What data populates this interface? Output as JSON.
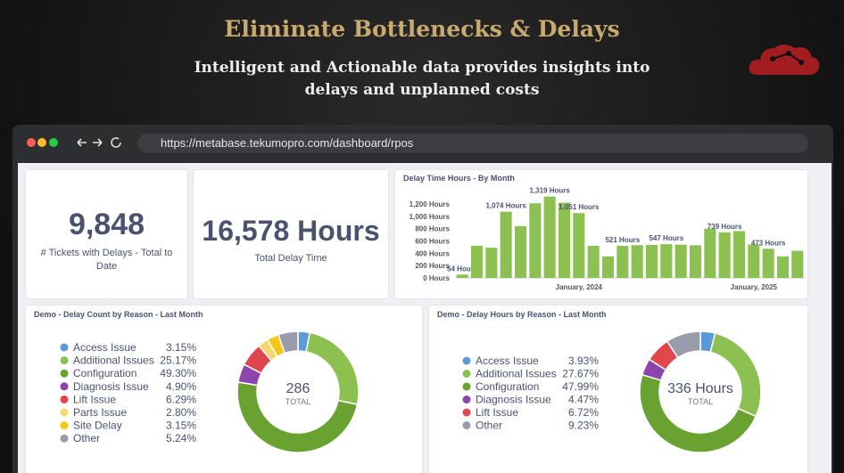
{
  "header": {
    "title": "Eliminate Bottlenecks & Delays",
    "subtitle": "Intelligent and Actionable data provides insights into delays and unplanned costs"
  },
  "browser": {
    "url": "https://metabase.tekumopro.com/dashboard/rpos"
  },
  "kpis": [
    {
      "value": "9,848",
      "label": "# Tickets with Delays - Total to Date"
    },
    {
      "value": "16,578 Hours",
      "label": "Total Delay Time"
    }
  ],
  "chart_data": [
    {
      "type": "bar",
      "title": "Delay Time Hours - By Month",
      "color": "#8cc152",
      "categories": [
        null,
        null,
        null,
        null,
        null,
        null,
        null,
        null,
        "January, 2024",
        null,
        null,
        null,
        null,
        null,
        null,
        null,
        null,
        null,
        null,
        null,
        "January, 2025",
        null,
        null,
        null
      ],
      "values": [
        54,
        520,
        490,
        1074,
        840,
        1210,
        1319,
        1220,
        1051,
        520,
        350,
        521,
        530,
        535,
        547,
        540,
        530,
        800,
        739,
        760,
        540,
        473,
        350,
        440
      ],
      "value_labels": [
        "54 Hours",
        null,
        null,
        "1,074 Hours",
        null,
        null,
        "1,319 Hours",
        null,
        "1,051 Hours",
        null,
        null,
        "521 Hours",
        null,
        null,
        "547 Hours",
        null,
        null,
        null,
        "739 Hours",
        null,
        null,
        "473 Hours",
        null,
        null
      ],
      "ylim": [
        0,
        1300
      ],
      "yticks": [
        {
          "value": 0,
          "label": "0 Hours"
        },
        {
          "value": 200,
          "label": "200 Hours"
        },
        {
          "value": 400,
          "label": "400 Hours"
        },
        {
          "value": 600,
          "label": "600 Hours"
        },
        {
          "value": 800,
          "label": "800 Hours"
        },
        {
          "value": 1000,
          "label": "1,000 Hours"
        },
        {
          "value": 1200,
          "label": "1,200 Hours"
        }
      ],
      "grid": false
    },
    {
      "type": "donut",
      "title": "Demo - Delay Count by Reason - Last Month",
      "categories": [
        "Access Issue",
        "Additional Issues",
        "Configuration",
        "Diagnosis Issue",
        "Lift Issue",
        "Parts Issue",
        "Site Delay",
        "Other"
      ],
      "values": [
        3.15,
        25.17,
        49.3,
        4.9,
        6.29,
        2.8,
        3.15,
        5.24
      ],
      "value_labels": [
        "3.15%",
        "25.17%",
        "49.30%",
        "4.90%",
        "6.29%",
        "2.80%",
        "3.15%",
        "5.24%"
      ],
      "colors": [
        "#5b9bd5",
        "#8cc152",
        "#6aa232",
        "#8e44ad",
        "#e0474c",
        "#f5d76e",
        "#f5c518",
        "#9a9cac"
      ],
      "center_value": 286,
      "center_label": "TOTAL"
    },
    {
      "type": "donut",
      "title": "Demo - Delay Hours by Reason - Last Month",
      "categories": [
        "Access Issue",
        "Additional Issues",
        "Configuration",
        "Diagnosis Issue",
        "Lift Issue",
        "Other"
      ],
      "values": [
        3.93,
        27.67,
        47.99,
        4.47,
        6.72,
        9.23
      ],
      "value_labels": [
        "3.93%",
        "27.67%",
        "47.99%",
        "4.47%",
        "6.72%",
        "9.23%"
      ],
      "colors": [
        "#5b9bd5",
        "#8cc152",
        "#6aa232",
        "#8e44ad",
        "#e0474c",
        "#9a9cac"
      ],
      "center_value": "336 Hours",
      "center_label": "TOTAL"
    }
  ]
}
